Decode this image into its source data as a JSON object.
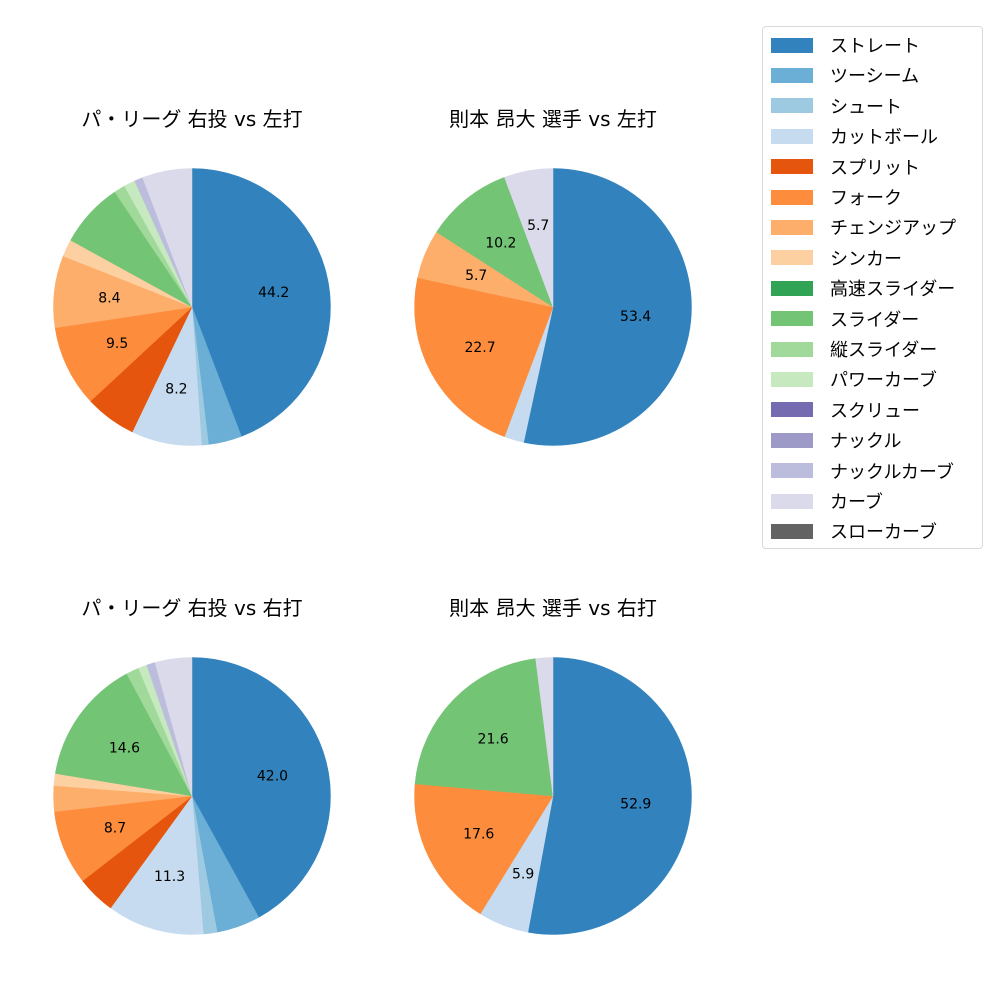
{
  "colors": {
    "ストレート": "#3182bd",
    "ツーシーム": "#6baed6",
    "シュート": "#9ecae1",
    "カットボール": "#c6dbef",
    "スプリット": "#e6550d",
    "フォーク": "#fd8d3c",
    "チェンジアップ": "#fdae6b",
    "シンカー": "#fdd0a2",
    "高速スライダー": "#31a354",
    "スライダー": "#74c476",
    "縦スライダー": "#a1d99b",
    "パワーカーブ": "#c7e9c0",
    "スクリュー": "#756bb1",
    "ナックル": "#9e9ac8",
    "ナックルカーブ": "#bcbddc",
    "カーブ": "#dadaeb",
    "スローカーブ": "#636363"
  },
  "legend": {
    "items": [
      {
        "label": "ストレート",
        "color": "#3182bd"
      },
      {
        "label": "ツーシーム",
        "color": "#6baed6"
      },
      {
        "label": "シュート",
        "color": "#9ecae1"
      },
      {
        "label": "カットボール",
        "color": "#c6dbef"
      },
      {
        "label": "スプリット",
        "color": "#e6550d"
      },
      {
        "label": "フォーク",
        "color": "#fd8d3c"
      },
      {
        "label": "チェンジアップ",
        "color": "#fdae6b"
      },
      {
        "label": "シンカー",
        "color": "#fdd0a2"
      },
      {
        "label": "高速スライダー",
        "color": "#31a354"
      },
      {
        "label": "スライダー",
        "color": "#74c476"
      },
      {
        "label": "縦スライダー",
        "color": "#a1d99b"
      },
      {
        "label": "パワーカーブ",
        "color": "#c7e9c0"
      },
      {
        "label": "スクリュー",
        "color": "#756bb1"
      },
      {
        "label": "ナックル",
        "color": "#9e9ac8"
      },
      {
        "label": "ナックルカーブ",
        "color": "#bcbddc"
      },
      {
        "label": "カーブ",
        "color": "#dadaeb"
      },
      {
        "label": "スローカーブ",
        "color": "#636363"
      }
    ]
  },
  "charts": [
    {
      "title": "パ・リーグ 右投 vs 左打"
    },
    {
      "title": "則本 昂大 選手 vs 左打"
    },
    {
      "title": "パ・リーグ 右投 vs 右打"
    },
    {
      "title": "則本 昂大 選手 vs 右打"
    }
  ],
  "chart_data": [
    {
      "type": "pie",
      "title": "パ・リーグ 右投 vs 左打",
      "start_angle": 90,
      "direction": "clockwise",
      "label_threshold": 8,
      "categories": [
        "ストレート",
        "ツーシーム",
        "シュート",
        "カットボール",
        "スプリット",
        "フォーク",
        "チェンジアップ",
        "シンカー",
        "スライダー",
        "縦スライダー",
        "パワーカーブ",
        "ナックルカーブ",
        "カーブ"
      ],
      "values": [
        44.2,
        3.9,
        0.8,
        8.2,
        6.0,
        9.5,
        8.4,
        2.0,
        7.6,
        1.3,
        1.3,
        1.0,
        5.8
      ],
      "labels_shown": [
        "44.2",
        "",
        "",
        "8.2",
        "",
        "9.5",
        "8.4",
        "",
        "",
        "",
        "",
        "",
        ""
      ]
    },
    {
      "type": "pie",
      "title": "則本 昂大 選手 vs 左打",
      "start_angle": 90,
      "direction": "clockwise",
      "label_threshold": 5,
      "categories": [
        "ストレート",
        "カットボール",
        "フォーク",
        "チェンジアップ",
        "スライダー",
        "カーブ"
      ],
      "values": [
        53.4,
        2.3,
        22.7,
        5.7,
        10.2,
        5.7
      ],
      "labels_shown": [
        "53.4",
        "",
        "22.7",
        "5.7",
        "10.2",
        "5.7"
      ]
    },
    {
      "type": "pie",
      "title": "パ・リーグ 右投 vs 右打",
      "start_angle": 90,
      "direction": "clockwise",
      "label_threshold": 8,
      "categories": [
        "ストレート",
        "ツーシーム",
        "シュート",
        "カットボール",
        "スプリット",
        "フォーク",
        "チェンジアップ",
        "シンカー",
        "スライダー",
        "縦スライダー",
        "パワーカーブ",
        "ナックルカーブ",
        "カーブ"
      ],
      "values": [
        42.0,
        5.1,
        1.6,
        11.3,
        4.5,
        8.7,
        3.0,
        1.4,
        14.6,
        1.5,
        1.0,
        1.0,
        4.3
      ],
      "labels_shown": [
        "42.0",
        "",
        "",
        "11.3",
        "",
        "8.7",
        "",
        "",
        "14.6",
        "",
        "",
        "",
        ""
      ]
    },
    {
      "type": "pie",
      "title": "則本 昂大 選手 vs 右打",
      "start_angle": 90,
      "direction": "clockwise",
      "label_threshold": 5,
      "categories": [
        "ストレート",
        "カットボール",
        "フォーク",
        "スライダー",
        "カーブ"
      ],
      "values": [
        52.9,
        5.9,
        17.6,
        21.6,
        2.0
      ],
      "labels_shown": [
        "52.9",
        "5.9",
        "17.6",
        "21.6",
        ""
      ]
    }
  ]
}
